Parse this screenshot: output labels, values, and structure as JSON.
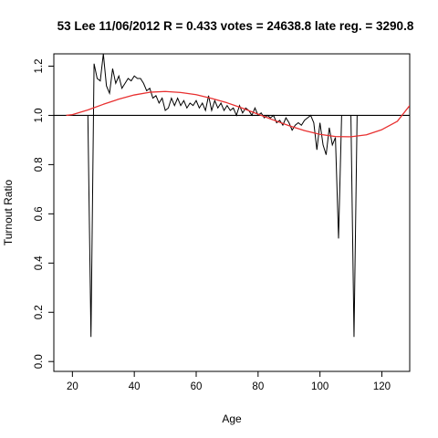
{
  "chart_data": {
    "type": "line",
    "title": "53 Lee 11/06/2012 R = 0.433 votes = 24638.8 late reg. = 3290.8",
    "xlabel": "Age",
    "ylabel": "Turnout Ratio",
    "xlim": [
      14,
      129
    ],
    "ylim": [
      -0.04,
      1.25
    ],
    "x_ticks": [
      20,
      40,
      60,
      80,
      100,
      120
    ],
    "y_ticks": [
      0.0,
      0.2,
      0.4,
      0.6,
      0.8,
      1.0,
      1.2
    ],
    "reference_line_y": 1.0,
    "grid": false,
    "legend": "none",
    "colors": {
      "ratio": "#000000",
      "fit": "#e83030",
      "reference": "#000000"
    },
    "series": [
      {
        "x": [
          18,
          19,
          20,
          21,
          22,
          23,
          24,
          25,
          26,
          27,
          28,
          29,
          30,
          31,
          32,
          33,
          34,
          35,
          36,
          37,
          38,
          39,
          40,
          41,
          42,
          43,
          44,
          45,
          46,
          47,
          48,
          49,
          50,
          51,
          52,
          53,
          54,
          55,
          56,
          57,
          58,
          59,
          60,
          61,
          62,
          63,
          64,
          65,
          66,
          67,
          68,
          69,
          70,
          71,
          72,
          73,
          74,
          75,
          76,
          77,
          78,
          79,
          80,
          81,
          82,
          83,
          84,
          85,
          86,
          87,
          88,
          89,
          90,
          91,
          92,
          93,
          94,
          95,
          96,
          97,
          98,
          99,
          100,
          101,
          102,
          103,
          104,
          105,
          106,
          107,
          108,
          109,
          110,
          111,
          112,
          113,
          114,
          115,
          116,
          117,
          118,
          119,
          120,
          121,
          122,
          123,
          124,
          125,
          126,
          127,
          128,
          129
        ],
        "y": [
          1.0,
          1.0,
          1.0,
          1.0,
          1.0,
          1.0,
          1.0,
          1.0,
          0.1,
          1.21,
          1.15,
          1.14,
          1.25,
          1.12,
          1.09,
          1.19,
          1.13,
          1.16,
          1.11,
          1.13,
          1.15,
          1.14,
          1.16,
          1.15,
          1.15,
          1.13,
          1.1,
          1.11,
          1.07,
          1.08,
          1.05,
          1.07,
          1.02,
          1.03,
          1.07,
          1.04,
          1.07,
          1.04,
          1.06,
          1.03,
          1.05,
          1.04,
          1.06,
          1.03,
          1.05,
          1.02,
          1.08,
          1.02,
          1.06,
          1.03,
          1.05,
          1.02,
          1.04,
          1.02,
          1.03,
          1.0,
          1.04,
          1.01,
          1.03,
          1.02,
          1.0,
          1.03,
          1.0,
          1.01,
          0.99,
          1.0,
          0.99,
          1.0,
          0.97,
          0.98,
          0.96,
          0.99,
          0.97,
          0.94,
          0.96,
          0.97,
          0.96,
          0.98,
          0.99,
          1.0,
          0.97,
          0.86,
          0.97,
          0.88,
          0.84,
          0.95,
          0.88,
          0.91,
          0.5,
          1.0,
          1.0,
          1.0,
          1.0,
          0.1,
          1.0,
          1.0,
          1.0,
          1.0,
          1.0,
          1.0,
          1.0,
          1.0,
          1.0,
          1.0,
          1.0,
          1.0,
          1.0,
          1.0,
          1.0,
          1.0,
          1.0,
          1.0
        ]
      },
      {
        "x": [
          18,
          20,
          25,
          30,
          35,
          40,
          45,
          50,
          55,
          60,
          65,
          70,
          75,
          80,
          85,
          90,
          95,
          100,
          105,
          110,
          115,
          120,
          125,
          129
        ],
        "y": [
          1.0,
          1.003,
          1.022,
          1.045,
          1.066,
          1.083,
          1.094,
          1.097,
          1.093,
          1.084,
          1.069,
          1.051,
          1.029,
          1.005,
          0.981,
          0.958,
          0.938,
          0.923,
          0.914,
          0.913,
          0.921,
          0.942,
          0.976,
          1.04
        ]
      }
    ]
  }
}
